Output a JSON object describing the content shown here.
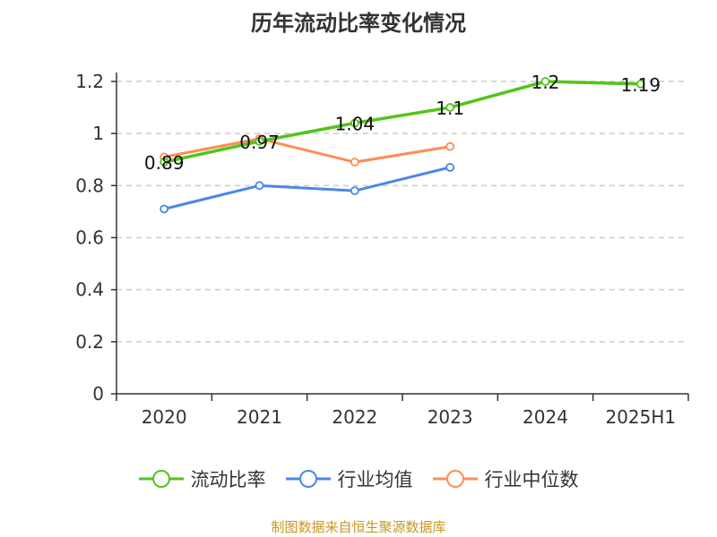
{
  "chart_data": {
    "type": "line",
    "title": "历年流动比率变化情况",
    "categories": [
      "2020",
      "2021",
      "2022",
      "2023",
      "2024",
      "2025H1"
    ],
    "ylim": [
      0,
      1.2
    ],
    "yticks": [
      0,
      0.2,
      0.4,
      0.6,
      0.8,
      1,
      1.2
    ],
    "ytick_labels": [
      "0",
      "0.2",
      "0.4",
      "0.6",
      "0.8",
      "1",
      "1.2"
    ],
    "grid": true,
    "legend_position": "bottom",
    "series": [
      {
        "name": "流动比率",
        "color": "#52c41a",
        "values": [
          0.89,
          0.97,
          1.04,
          1.1,
          1.2,
          1.19
        ],
        "labels": [
          "0.89",
          "0.97",
          "1.04",
          "1.1",
          "1.2",
          "1.19"
        ]
      },
      {
        "name": "行业均值",
        "color": "#4a86e8",
        "values": [
          0.71,
          0.8,
          0.78,
          0.87,
          null,
          null
        ]
      },
      {
        "name": "行业中位数",
        "color": "#ff8c55",
        "values": [
          0.91,
          0.98,
          0.89,
          0.95,
          null,
          null
        ]
      }
    ]
  },
  "source": "制图数据来自恒生聚源数据库"
}
